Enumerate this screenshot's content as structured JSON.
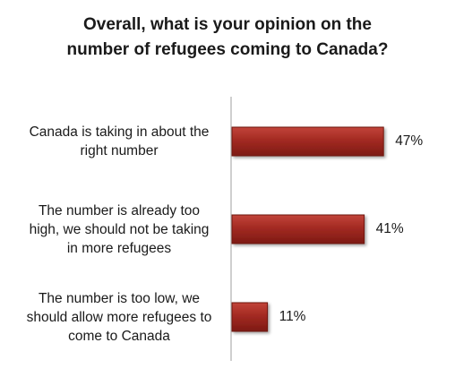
{
  "chart_data": {
    "type": "bar",
    "orientation": "horizontal",
    "title": "Overall, what is your opinion on the number of refugees coming to Canada?",
    "title_lines": [
      "Overall, what is your opinion on the",
      "number of refugees coming to Canada?"
    ],
    "categories": [
      "Canada is taking in about the right number",
      "The number is already too high, we should not be taking in more refugees",
      "The number is too low, we should allow more refugees to come to Canada"
    ],
    "category_lines": [
      [
        "Canada is taking in about the",
        "right number"
      ],
      [
        "The number is already too",
        "high, we should not be taking",
        "in more refugees"
      ],
      [
        "The number is too low, we",
        "should allow more refugees to",
        "come to Canada"
      ]
    ],
    "values": [
      47,
      41,
      11
    ],
    "value_labels": [
      "47%",
      "41%",
      "11%"
    ],
    "xlim": [
      0,
      100
    ],
    "grid": false,
    "legend": "none",
    "bar_color": "#a32a22",
    "bar_edge_color": "#6e1410",
    "axis_color": "#bfbfbf"
  }
}
